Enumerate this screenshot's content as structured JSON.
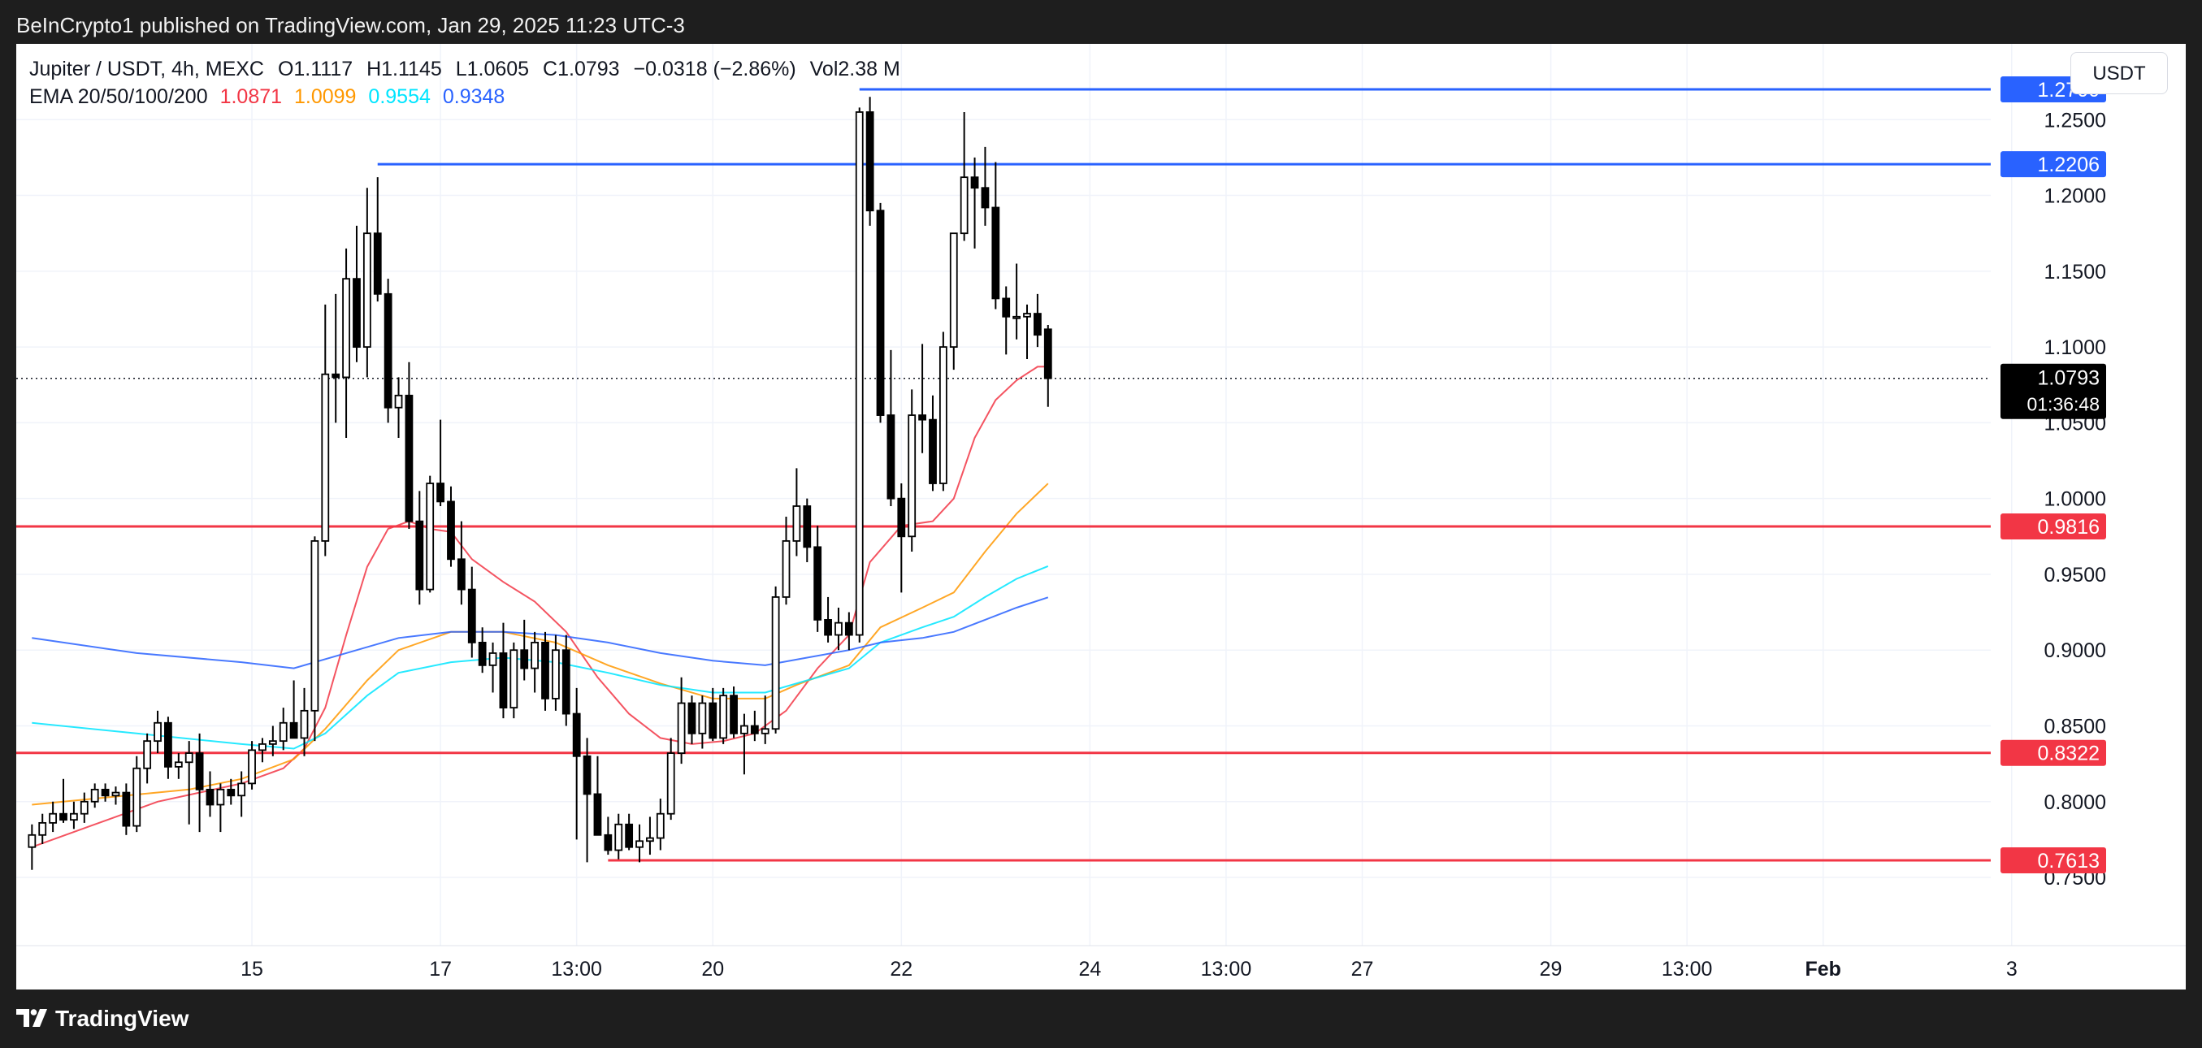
{
  "header": {
    "text": "BeInCrypto1 published on TradingView.com, Jan 29, 2025 11:23 UTC-3"
  },
  "legend": {
    "symbol": "Jupiter / USDT, 4h, MEXC",
    "open": "O1.1117",
    "high": "H1.1145",
    "low": "L1.0605",
    "close": "C1.0793",
    "change": "−0.0318 (−2.86%)",
    "volume": "Vol2.38 M",
    "ema_label": "EMA 20/50/100/200",
    "ema_values": [
      {
        "value": "1.0871",
        "color": "#f23645"
      },
      {
        "value": "1.0099",
        "color": "#ff9800"
      },
      {
        "value": "0.9554",
        "color": "#00e5ff"
      },
      {
        "value": "0.9348",
        "color": "#2962ff"
      }
    ]
  },
  "currency_button": "USDT",
  "footer": {
    "brand": "TradingView"
  },
  "chart_data": {
    "type": "candlestick",
    "ylim": [
      0.705,
      1.3
    ],
    "yticks": [
      0.75,
      0.8,
      0.85,
      0.9,
      0.95,
      1.0,
      1.05,
      1.1,
      1.15,
      1.2,
      1.25
    ],
    "ytick_labels": [
      "0.7500",
      "0.8000",
      "0.8500",
      "0.9000",
      "0.9500",
      "1.0000",
      "1.0500",
      "1.1000",
      "1.1500",
      "1.2000",
      "1.2500"
    ],
    "xlim": [
      -11.5,
      177
    ],
    "xticks": [
      {
        "label": "15",
        "x": 11
      },
      {
        "label": "17",
        "x": 29
      },
      {
        "label": "13:00",
        "x": 42
      },
      {
        "label": "20",
        "x": 55
      },
      {
        "label": "22",
        "x": 73
      },
      {
        "label": "24",
        "x": 91
      },
      {
        "label": "13:00",
        "x": 104
      },
      {
        "label": "27",
        "x": 117
      },
      {
        "label": "29",
        "x": 135
      },
      {
        "label": "13:00",
        "x": 148
      },
      {
        "label": "Feb",
        "x": 161
      },
      {
        "label": "3",
        "x": 179
      }
    ],
    "candles": [
      {
        "x": -10,
        "o": 0.77,
        "h": 0.785,
        "l": 0.755,
        "c": 0.778
      },
      {
        "x": -9,
        "o": 0.778,
        "h": 0.792,
        "l": 0.772,
        "c": 0.786
      },
      {
        "x": -8,
        "o": 0.786,
        "h": 0.8,
        "l": 0.78,
        "c": 0.792
      },
      {
        "x": -7,
        "o": 0.792,
        "h": 0.815,
        "l": 0.786,
        "c": 0.788
      },
      {
        "x": -6,
        "o": 0.788,
        "h": 0.8,
        "l": 0.782,
        "c": 0.792
      },
      {
        "x": -5,
        "o": 0.792,
        "h": 0.806,
        "l": 0.786,
        "c": 0.8
      },
      {
        "x": -4,
        "o": 0.8,
        "h": 0.812,
        "l": 0.796,
        "c": 0.808
      },
      {
        "x": -3,
        "o": 0.808,
        "h": 0.812,
        "l": 0.8,
        "c": 0.804
      },
      {
        "x": -2,
        "o": 0.804,
        "h": 0.81,
        "l": 0.798,
        "c": 0.806
      },
      {
        "x": -1,
        "o": 0.806,
        "h": 0.812,
        "l": 0.778,
        "c": 0.784
      },
      {
        "x": 0,
        "o": 0.784,
        "h": 0.83,
        "l": 0.78,
        "c": 0.822
      },
      {
        "x": 1,
        "o": 0.822,
        "h": 0.845,
        "l": 0.812,
        "c": 0.84
      },
      {
        "x": 2,
        "o": 0.84,
        "h": 0.86,
        "l": 0.832,
        "c": 0.852
      },
      {
        "x": 3,
        "o": 0.852,
        "h": 0.856,
        "l": 0.815,
        "c": 0.823
      },
      {
        "x": 4,
        "o": 0.823,
        "h": 0.832,
        "l": 0.815,
        "c": 0.826
      },
      {
        "x": 5,
        "o": 0.826,
        "h": 0.84,
        "l": 0.785,
        "c": 0.832
      },
      {
        "x": 6,
        "o": 0.832,
        "h": 0.845,
        "l": 0.78,
        "c": 0.808
      },
      {
        "x": 7,
        "o": 0.808,
        "h": 0.82,
        "l": 0.79,
        "c": 0.798
      },
      {
        "x": 8,
        "o": 0.798,
        "h": 0.812,
        "l": 0.78,
        "c": 0.808
      },
      {
        "x": 9,
        "o": 0.808,
        "h": 0.815,
        "l": 0.798,
        "c": 0.804
      },
      {
        "x": 10,
        "o": 0.804,
        "h": 0.82,
        "l": 0.79,
        "c": 0.812
      },
      {
        "x": 11,
        "o": 0.812,
        "h": 0.84,
        "l": 0.808,
        "c": 0.834
      },
      {
        "x": 12,
        "o": 0.834,
        "h": 0.842,
        "l": 0.826,
        "c": 0.838
      },
      {
        "x": 13,
        "o": 0.838,
        "h": 0.85,
        "l": 0.83,
        "c": 0.84
      },
      {
        "x": 14,
        "o": 0.84,
        "h": 0.862,
        "l": 0.834,
        "c": 0.852
      },
      {
        "x": 15,
        "o": 0.852,
        "h": 0.88,
        "l": 0.842,
        "c": 0.842
      },
      {
        "x": 16,
        "o": 0.842,
        "h": 0.875,
        "l": 0.83,
        "c": 0.86
      },
      {
        "x": 17,
        "o": 0.86,
        "h": 0.975,
        "l": 0.84,
        "c": 0.972
      },
      {
        "x": 18,
        "o": 0.972,
        "h": 1.128,
        "l": 0.962,
        "c": 1.082
      },
      {
        "x": 19,
        "o": 1.082,
        "h": 1.135,
        "l": 1.05,
        "c": 1.08
      },
      {
        "x": 20,
        "o": 1.08,
        "h": 1.165,
        "l": 1.04,
        "c": 1.145
      },
      {
        "x": 21,
        "o": 1.145,
        "h": 1.18,
        "l": 1.09,
        "c": 1.1
      },
      {
        "x": 22,
        "o": 1.1,
        "h": 1.205,
        "l": 1.08,
        "c": 1.175
      },
      {
        "x": 23,
        "o": 1.175,
        "h": 1.212,
        "l": 1.13,
        "c": 1.135
      },
      {
        "x": 24,
        "o": 1.135,
        "h": 1.145,
        "l": 1.05,
        "c": 1.06
      },
      {
        "x": 25,
        "o": 1.06,
        "h": 1.08,
        "l": 1.04,
        "c": 1.068
      },
      {
        "x": 26,
        "o": 1.068,
        "h": 1.09,
        "l": 0.98,
        "c": 0.985
      },
      {
        "x": 27,
        "o": 0.985,
        "h": 1.005,
        "l": 0.93,
        "c": 0.94
      },
      {
        "x": 28,
        "o": 0.94,
        "h": 1.015,
        "l": 0.938,
        "c": 1.01
      },
      {
        "x": 29,
        "o": 1.01,
        "h": 1.052,
        "l": 0.995,
        "c": 0.998
      },
      {
        "x": 30,
        "o": 0.998,
        "h": 1.008,
        "l": 0.955,
        "c": 0.96
      },
      {
        "x": 31,
        "o": 0.96,
        "h": 0.985,
        "l": 0.93,
        "c": 0.94
      },
      {
        "x": 32,
        "o": 0.94,
        "h": 0.955,
        "l": 0.895,
        "c": 0.905
      },
      {
        "x": 33,
        "o": 0.905,
        "h": 0.915,
        "l": 0.885,
        "c": 0.89
      },
      {
        "x": 34,
        "o": 0.89,
        "h": 0.905,
        "l": 0.872,
        "c": 0.898
      },
      {
        "x": 35,
        "o": 0.898,
        "h": 0.918,
        "l": 0.855,
        "c": 0.862
      },
      {
        "x": 36,
        "o": 0.862,
        "h": 0.905,
        "l": 0.855,
        "c": 0.9
      },
      {
        "x": 37,
        "o": 0.9,
        "h": 0.92,
        "l": 0.88,
        "c": 0.888
      },
      {
        "x": 38,
        "o": 0.888,
        "h": 0.912,
        "l": 0.872,
        "c": 0.905
      },
      {
        "x": 39,
        "o": 0.905,
        "h": 0.912,
        "l": 0.86,
        "c": 0.868
      },
      {
        "x": 40,
        "o": 0.868,
        "h": 0.91,
        "l": 0.86,
        "c": 0.9
      },
      {
        "x": 41,
        "o": 0.9,
        "h": 0.91,
        "l": 0.85,
        "c": 0.858
      },
      {
        "x": 42,
        "o": 0.858,
        "h": 0.875,
        "l": 0.775,
        "c": 0.83
      },
      {
        "x": 43,
        "o": 0.83,
        "h": 0.842,
        "l": 0.76,
        "c": 0.805
      },
      {
        "x": 44,
        "o": 0.805,
        "h": 0.83,
        "l": 0.78,
        "c": 0.778
      },
      {
        "x": 45,
        "o": 0.778,
        "h": 0.79,
        "l": 0.765,
        "c": 0.768
      },
      {
        "x": 46,
        "o": 0.768,
        "h": 0.792,
        "l": 0.762,
        "c": 0.785
      },
      {
        "x": 47,
        "o": 0.785,
        "h": 0.792,
        "l": 0.768,
        "c": 0.77
      },
      {
        "x": 48,
        "o": 0.77,
        "h": 0.785,
        "l": 0.76,
        "c": 0.774
      },
      {
        "x": 49,
        "o": 0.774,
        "h": 0.79,
        "l": 0.765,
        "c": 0.776
      },
      {
        "x": 50,
        "o": 0.776,
        "h": 0.802,
        "l": 0.768,
        "c": 0.792
      },
      {
        "x": 51,
        "o": 0.792,
        "h": 0.842,
        "l": 0.788,
        "c": 0.832
      },
      {
        "x": 52,
        "o": 0.832,
        "h": 0.882,
        "l": 0.825,
        "c": 0.865
      },
      {
        "x": 53,
        "o": 0.865,
        "h": 0.87,
        "l": 0.838,
        "c": 0.845
      },
      {
        "x": 54,
        "o": 0.845,
        "h": 0.87,
        "l": 0.835,
        "c": 0.865
      },
      {
        "x": 55,
        "o": 0.865,
        "h": 0.875,
        "l": 0.84,
        "c": 0.842
      },
      {
        "x": 56,
        "o": 0.842,
        "h": 0.875,
        "l": 0.838,
        "c": 0.87
      },
      {
        "x": 57,
        "o": 0.87,
        "h": 0.876,
        "l": 0.842,
        "c": 0.845
      },
      {
        "x": 58,
        "o": 0.845,
        "h": 0.858,
        "l": 0.818,
        "c": 0.85
      },
      {
        "x": 59,
        "o": 0.85,
        "h": 0.86,
        "l": 0.84,
        "c": 0.845
      },
      {
        "x": 60,
        "o": 0.845,
        "h": 0.87,
        "l": 0.838,
        "c": 0.848
      },
      {
        "x": 61,
        "o": 0.848,
        "h": 0.942,
        "l": 0.845,
        "c": 0.935
      },
      {
        "x": 62,
        "o": 0.935,
        "h": 0.988,
        "l": 0.93,
        "c": 0.972
      },
      {
        "x": 63,
        "o": 0.972,
        "h": 1.02,
        "l": 0.962,
        "c": 0.995
      },
      {
        "x": 64,
        "o": 0.995,
        "h": 1.0,
        "l": 0.958,
        "c": 0.968
      },
      {
        "x": 65,
        "o": 0.968,
        "h": 0.982,
        "l": 0.912,
        "c": 0.92
      },
      {
        "x": 66,
        "o": 0.92,
        "h": 0.935,
        "l": 0.905,
        "c": 0.91
      },
      {
        "x": 67,
        "o": 0.91,
        "h": 0.928,
        "l": 0.9,
        "c": 0.918
      },
      {
        "x": 68,
        "o": 0.918,
        "h": 0.925,
        "l": 0.9,
        "c": 0.91
      },
      {
        "x": 69,
        "o": 0.91,
        "h": 1.258,
        "l": 0.905,
        "c": 1.255
      },
      {
        "x": 70,
        "o": 1.255,
        "h": 1.265,
        "l": 1.18,
        "c": 1.19
      },
      {
        "x": 71,
        "o": 1.19,
        "h": 1.195,
        "l": 1.05,
        "c": 1.055
      },
      {
        "x": 72,
        "o": 1.055,
        "h": 1.098,
        "l": 0.995,
        "c": 1.0
      },
      {
        "x": 73,
        "o": 1.0,
        "h": 1.01,
        "l": 0.938,
        "c": 0.975
      },
      {
        "x": 74,
        "o": 0.975,
        "h": 1.072,
        "l": 0.965,
        "c": 1.055
      },
      {
        "x": 75,
        "o": 1.055,
        "h": 1.102,
        "l": 1.03,
        "c": 1.052
      },
      {
        "x": 76,
        "o": 1.052,
        "h": 1.068,
        "l": 1.005,
        "c": 1.01
      },
      {
        "x": 77,
        "o": 1.01,
        "h": 1.11,
        "l": 1.005,
        "c": 1.1
      },
      {
        "x": 78,
        "o": 1.1,
        "h": 1.175,
        "l": 1.085,
        "c": 1.175
      },
      {
        "x": 79,
        "o": 1.175,
        "h": 1.255,
        "l": 1.17,
        "c": 1.212
      },
      {
        "x": 80,
        "o": 1.212,
        "h": 1.225,
        "l": 1.165,
        "c": 1.205
      },
      {
        "x": 81,
        "o": 1.205,
        "h": 1.232,
        "l": 1.18,
        "c": 1.192
      },
      {
        "x": 82,
        "o": 1.192,
        "h": 1.222,
        "l": 1.125,
        "c": 1.132
      },
      {
        "x": 83,
        "o": 1.132,
        "h": 1.14,
        "l": 1.095,
        "c": 1.12
      },
      {
        "x": 84,
        "o": 1.12,
        "h": 1.155,
        "l": 1.105,
        "c": 1.12
      },
      {
        "x": 85,
        "o": 1.12,
        "h": 1.128,
        "l": 1.092,
        "c": 1.122
      },
      {
        "x": 86,
        "o": 1.122,
        "h": 1.135,
        "l": 1.1,
        "c": 1.108
      },
      {
        "x": 87,
        "o": 1.1117,
        "h": 1.1145,
        "l": 1.0605,
        "c": 1.0793
      }
    ],
    "ema": [
      {
        "name": "EMA 20",
        "color": "#f23645",
        "points": [
          [
            -10,
            0.77
          ],
          [
            2,
            0.8
          ],
          [
            10,
            0.812
          ],
          [
            14,
            0.822
          ],
          [
            16,
            0.835
          ],
          [
            18,
            0.862
          ],
          [
            20,
            0.91
          ],
          [
            22,
            0.955
          ],
          [
            24,
            0.98
          ],
          [
            26,
            0.985
          ],
          [
            28,
            0.98
          ],
          [
            30,
            0.978
          ],
          [
            32,
            0.96
          ],
          [
            35,
            0.945
          ],
          [
            38,
            0.932
          ],
          [
            41,
            0.912
          ],
          [
            44,
            0.882
          ],
          [
            47,
            0.858
          ],
          [
            50,
            0.842
          ],
          [
            53,
            0.838
          ],
          [
            56,
            0.84
          ],
          [
            59,
            0.845
          ],
          [
            62,
            0.86
          ],
          [
            65,
            0.888
          ],
          [
            68,
            0.91
          ],
          [
            70,
            0.958
          ],
          [
            73,
            0.982
          ],
          [
            76,
            0.985
          ],
          [
            78,
            1.0
          ],
          [
            80,
            1.04
          ],
          [
            82,
            1.065
          ],
          [
            84,
            1.078
          ],
          [
            86,
            1.087
          ],
          [
            87,
            1.0871
          ]
        ]
      },
      {
        "name": "EMA 50",
        "color": "#ff9800",
        "points": [
          [
            -10,
            0.798
          ],
          [
            5,
            0.808
          ],
          [
            10,
            0.815
          ],
          [
            15,
            0.828
          ],
          [
            18,
            0.848
          ],
          [
            22,
            0.88
          ],
          [
            25,
            0.9
          ],
          [
            30,
            0.912
          ],
          [
            35,
            0.912
          ],
          [
            40,
            0.905
          ],
          [
            45,
            0.89
          ],
          [
            50,
            0.878
          ],
          [
            55,
            0.868
          ],
          [
            60,
            0.868
          ],
          [
            63,
            0.877
          ],
          [
            68,
            0.89
          ],
          [
            71,
            0.915
          ],
          [
            75,
            0.928
          ],
          [
            78,
            0.938
          ],
          [
            81,
            0.965
          ],
          [
            84,
            0.99
          ],
          [
            87,
            1.0099
          ]
        ]
      },
      {
        "name": "EMA 100",
        "color": "#00e5ff",
        "points": [
          [
            -10,
            0.852
          ],
          [
            0,
            0.845
          ],
          [
            10,
            0.838
          ],
          [
            15,
            0.835
          ],
          [
            18,
            0.845
          ],
          [
            22,
            0.87
          ],
          [
            25,
            0.885
          ],
          [
            30,
            0.892
          ],
          [
            35,
            0.895
          ],
          [
            40,
            0.892
          ],
          [
            45,
            0.885
          ],
          [
            50,
            0.877
          ],
          [
            55,
            0.872
          ],
          [
            60,
            0.872
          ],
          [
            64,
            0.88
          ],
          [
            68,
            0.888
          ],
          [
            71,
            0.905
          ],
          [
            75,
            0.915
          ],
          [
            78,
            0.922
          ],
          [
            81,
            0.935
          ],
          [
            84,
            0.947
          ],
          [
            87,
            0.9554
          ]
        ]
      },
      {
        "name": "EMA 200",
        "color": "#2962ff",
        "points": [
          [
            -10,
            0.908
          ],
          [
            0,
            0.898
          ],
          [
            10,
            0.892
          ],
          [
            15,
            0.888
          ],
          [
            20,
            0.898
          ],
          [
            25,
            0.908
          ],
          [
            30,
            0.912
          ],
          [
            35,
            0.912
          ],
          [
            40,
            0.91
          ],
          [
            45,
            0.905
          ],
          [
            50,
            0.898
          ],
          [
            55,
            0.893
          ],
          [
            60,
            0.89
          ],
          [
            64,
            0.895
          ],
          [
            68,
            0.9
          ],
          [
            71,
            0.905
          ],
          [
            75,
            0.908
          ],
          [
            78,
            0.912
          ],
          [
            81,
            0.92
          ],
          [
            84,
            0.928
          ],
          [
            87,
            0.9348
          ]
        ]
      }
    ],
    "levels": [
      {
        "value": 1.27,
        "label": "1.2700",
        "color": "#2962ff",
        "x_start": 69
      },
      {
        "value": 1.2206,
        "label": "1.2206",
        "color": "#2962ff",
        "x_start": 23
      },
      {
        "value": 0.9816,
        "label": "0.9816",
        "color": "#f23645",
        "x_start": -11.5
      },
      {
        "value": 0.8322,
        "label": "0.8322",
        "color": "#f23645",
        "x_start": -11.5
      },
      {
        "value": 0.7613,
        "label": "0.7613",
        "color": "#f23645",
        "x_start": 45
      }
    ],
    "last_price": {
      "value": 1.0793,
      "label": "1.0793",
      "countdown": "01:36:48"
    }
  }
}
